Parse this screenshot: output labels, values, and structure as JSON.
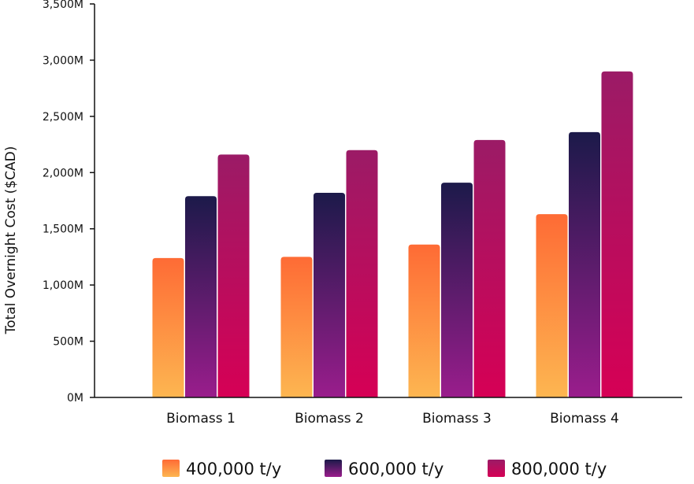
{
  "chart_data": {
    "type": "bar",
    "ylabel": "Total Overnight Cost ($CAD)",
    "ylim": [
      0,
      3500
    ],
    "y_ticks": [
      {
        "value": 0,
        "label": "0M"
      },
      {
        "value": 500,
        "label": "500M"
      },
      {
        "value": 1000,
        "label": "1,000M"
      },
      {
        "value": 1500,
        "label": "1,500M"
      },
      {
        "value": 2000,
        "label": "2,000M"
      },
      {
        "value": 2500,
        "label": "2,500M"
      },
      {
        "value": 3000,
        "label": "3,000M"
      },
      {
        "value": 3500,
        "label": "3,500M"
      }
    ],
    "categories": [
      "Biomass 1",
      "Biomass 2",
      "Biomass 3",
      "Biomass 4"
    ],
    "series": [
      {
        "name": "400,000 t/y",
        "values": [
          1240,
          1250,
          1360,
          1630
        ],
        "color_top": "#fe6b35",
        "color_bottom": "#fdb651"
      },
      {
        "name": "600,000 t/y",
        "values": [
          1790,
          1820,
          1910,
          2360
        ],
        "color_top": "#1c1a4a",
        "color_bottom": "#9a1d8c"
      },
      {
        "name": "800,000 t/y",
        "values": [
          2160,
          2200,
          2290,
          2900
        ],
        "color_top": "#9b1b66",
        "color_bottom": "#d60055"
      }
    ],
    "legend_position": "bottom",
    "grid": false
  }
}
